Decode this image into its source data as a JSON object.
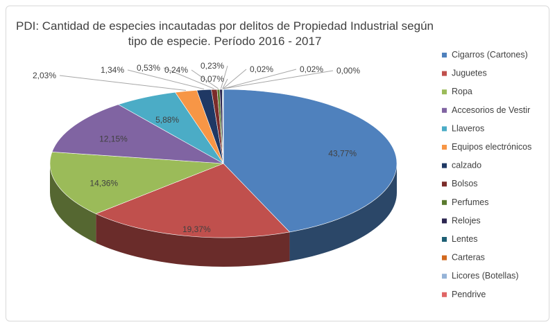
{
  "chart_data": {
    "type": "pie",
    "title_line1": "PDI: Cantidad de especies incautadas por delitos de Propiedad Industrial según",
    "title_line2": "tipo de especie. Período 2016 - 2017",
    "legend_position": "right",
    "slices": [
      {
        "label": "Cigarros (Cartones)",
        "value": 43.77,
        "display": "43,77%",
        "color": "#4f81bd"
      },
      {
        "label": "Juguetes",
        "value": 19.37,
        "display": "19,37%",
        "color": "#c0504d"
      },
      {
        "label": "Ropa",
        "value": 14.36,
        "display": "14,36%",
        "color": "#9bbb59"
      },
      {
        "label": "Accesorios de Vestir",
        "value": 12.15,
        "display": "12,15%",
        "color": "#8064a2"
      },
      {
        "label": "Llaveros",
        "value": 5.88,
        "display": "5,88%",
        "color": "#4bacc6"
      },
      {
        "label": "Equipos electrónicos",
        "value": 2.03,
        "display": "2,03%",
        "color": "#f79646"
      },
      {
        "label": "calzado",
        "value": 1.34,
        "display": "1,34%",
        "color": "#1f3864"
      },
      {
        "label": "Bolsos",
        "value": 0.53,
        "display": "0,53%",
        "color": "#7b2c2a"
      },
      {
        "label": "Perfumes",
        "value": 0.24,
        "display": "0,24%",
        "color": "#5a7a2e"
      },
      {
        "label": "Relojes",
        "value": 0.23,
        "display": "0,23%",
        "color": "#2c2650"
      },
      {
        "label": "Lentes",
        "value": 0.07,
        "display": "0,07%",
        "color": "#1e5f74"
      },
      {
        "label": "Carteras",
        "value": 0.02,
        "display": "0,02%",
        "color": "#d2691e"
      },
      {
        "label": "Licores (Botellas)",
        "value": 0.02,
        "display": "0,02%",
        "color": "#95b3d7"
      },
      {
        "label": "Pendrive",
        "value": 0.0,
        "display": "0,00%",
        "color": "#e06666"
      }
    ]
  }
}
